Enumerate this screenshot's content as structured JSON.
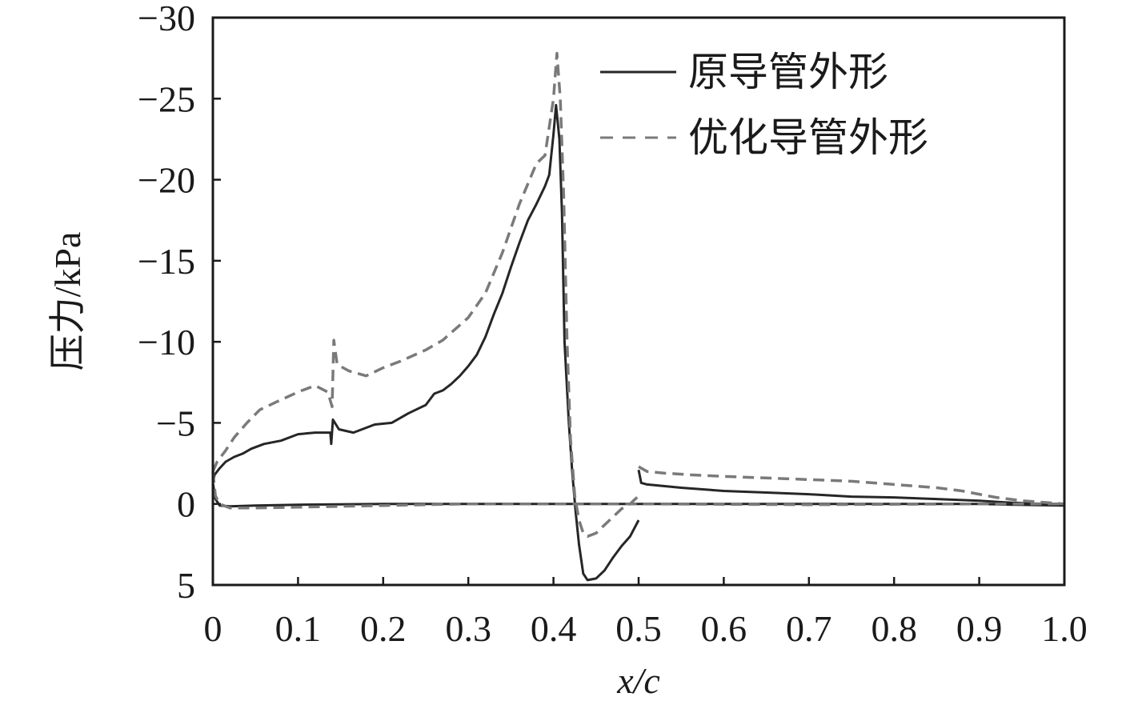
{
  "chart_data": {
    "type": "line",
    "xlabel": "x/c",
    "ylabel": "压力/kPa",
    "xlim": [
      0,
      1.0
    ],
    "ylim": [
      5,
      -30
    ],
    "y_inverted": true,
    "grid": false,
    "legend_position": "top-right",
    "x_ticks": [
      {
        "value": 0,
        "label": "0"
      },
      {
        "value": 0.1,
        "label": "0.1"
      },
      {
        "value": 0.2,
        "label": "0.2"
      },
      {
        "value": 0.3,
        "label": "0.3"
      },
      {
        "value": 0.4,
        "label": "0.4"
      },
      {
        "value": 0.5,
        "label": "0.5"
      },
      {
        "value": 0.6,
        "label": "0.6"
      },
      {
        "value": 0.7,
        "label": "0.7"
      },
      {
        "value": 0.8,
        "label": "0.8"
      },
      {
        "value": 0.9,
        "label": "0.9"
      },
      {
        "value": 1.0,
        "label": "1.0"
      }
    ],
    "y_ticks": [
      {
        "value": -30,
        "label": "−30"
      },
      {
        "value": -25,
        "label": "−25"
      },
      {
        "value": -20,
        "label": "−20"
      },
      {
        "value": -15,
        "label": "−15"
      },
      {
        "value": -10,
        "label": "−10"
      },
      {
        "value": -5,
        "label": "−5"
      },
      {
        "value": 0,
        "label": "0"
      },
      {
        "value": 5,
        "label": "5"
      }
    ],
    "series": [
      {
        "name": "原导管外形",
        "color": "#262626",
        "dash": "solid",
        "segments": [
          [
            [
              0.0,
              -1.3
            ],
            [
              0.002,
              -1.8
            ],
            [
              0.008,
              -2.2
            ],
            [
              0.015,
              -2.6
            ],
            [
              0.025,
              -2.9
            ],
            [
              0.035,
              -3.1
            ],
            [
              0.045,
              -3.4
            ],
            [
              0.06,
              -3.7
            ],
            [
              0.08,
              -3.9
            ],
            [
              0.1,
              -4.3
            ],
            [
              0.12,
              -4.4
            ],
            [
              0.138,
              -4.4
            ],
            [
              0.139,
              -3.7
            ],
            [
              0.141,
              -5.2
            ],
            [
              0.148,
              -4.6
            ],
            [
              0.165,
              -4.4
            ],
            [
              0.19,
              -4.9
            ],
            [
              0.21,
              -5.0
            ],
            [
              0.23,
              -5.6
            ],
            [
              0.25,
              -6.1
            ],
            [
              0.26,
              -6.8
            ],
            [
              0.27,
              -7.0
            ],
            [
              0.28,
              -7.4
            ],
            [
              0.29,
              -7.9
            ],
            [
              0.3,
              -8.5
            ],
            [
              0.31,
              -9.2
            ],
            [
              0.32,
              -10.3
            ],
            [
              0.33,
              -11.7
            ],
            [
              0.34,
              -13.0
            ],
            [
              0.35,
              -14.6
            ],
            [
              0.36,
              -16.1
            ],
            [
              0.37,
              -17.5
            ],
            [
              0.38,
              -18.5
            ],
            [
              0.39,
              -19.6
            ],
            [
              0.395,
              -20.3
            ],
            [
              0.4,
              -22.8
            ],
            [
              0.403,
              -24.6
            ],
            [
              0.407,
              -22.5
            ],
            [
              0.41,
              -18.0
            ],
            [
              0.413,
              -10.0
            ],
            [
              0.418,
              -5.0
            ],
            [
              0.422,
              -2.0
            ],
            [
              0.426,
              0.5
            ],
            [
              0.43,
              2.5
            ],
            [
              0.435,
              4.3
            ],
            [
              0.44,
              4.7
            ],
            [
              0.45,
              4.6
            ],
            [
              0.46,
              4.1
            ],
            [
              0.47,
              3.3
            ],
            [
              0.48,
              2.6
            ],
            [
              0.49,
              2.0
            ],
            [
              0.5,
              1.0
            ]
          ],
          [
            [
              0.5,
              -2.1
            ],
            [
              0.503,
              -1.3
            ],
            [
              0.51,
              -1.2
            ],
            [
              0.55,
              -1.0
            ],
            [
              0.6,
              -0.8
            ],
            [
              0.65,
              -0.7
            ],
            [
              0.7,
              -0.6
            ],
            [
              0.75,
              -0.45
            ],
            [
              0.8,
              -0.4
            ],
            [
              0.85,
              -0.3
            ],
            [
              0.9,
              -0.2
            ],
            [
              0.93,
              -0.1
            ],
            [
              0.96,
              -0.02
            ],
            [
              1.0,
              0.0
            ]
          ],
          [
            [
              0.0,
              -1.3
            ],
            [
              0.003,
              -0.3
            ],
            [
              0.008,
              0.1
            ],
            [
              0.02,
              0.15
            ],
            [
              0.05,
              0.1
            ],
            [
              0.1,
              0.05
            ],
            [
              0.2,
              0.0
            ],
            [
              0.3,
              0.0
            ],
            [
              0.4,
              0.0
            ],
            [
              0.5,
              0.0
            ],
            [
              0.7,
              0.0
            ],
            [
              0.9,
              0.0
            ],
            [
              0.94,
              0.05
            ],
            [
              1.0,
              0.1
            ]
          ]
        ]
      },
      {
        "name": "优化导管外形",
        "color": "#7a7a7a",
        "dash": "dashed",
        "segments": [
          [
            [
              0.0,
              -2.0
            ],
            [
              0.005,
              -2.6
            ],
            [
              0.015,
              -3.3
            ],
            [
              0.025,
              -4.1
            ],
            [
              0.04,
              -5.0
            ],
            [
              0.055,
              -5.8
            ],
            [
              0.075,
              -6.3
            ],
            [
              0.1,
              -6.9
            ],
            [
              0.12,
              -7.3
            ],
            [
              0.135,
              -6.9
            ],
            [
              0.14,
              -6.0
            ],
            [
              0.142,
              -10.1
            ],
            [
              0.146,
              -8.6
            ],
            [
              0.16,
              -8.2
            ],
            [
              0.18,
              -7.9
            ],
            [
              0.2,
              -8.4
            ],
            [
              0.22,
              -8.8
            ],
            [
              0.25,
              -9.5
            ],
            [
              0.27,
              -10.1
            ],
            [
              0.3,
              -11.5
            ],
            [
              0.32,
              -13.0
            ],
            [
              0.34,
              -15.5
            ],
            [
              0.36,
              -18.5
            ],
            [
              0.38,
              -21.0
            ],
            [
              0.39,
              -21.5
            ],
            [
              0.4,
              -25.0
            ],
            [
              0.404,
              -27.8
            ],
            [
              0.408,
              -25.0
            ],
            [
              0.412,
              -19.0
            ],
            [
              0.416,
              -10.0
            ],
            [
              0.42,
              -4.0
            ],
            [
              0.425,
              -0.5
            ],
            [
              0.43,
              1.0
            ],
            [
              0.435,
              1.8
            ],
            [
              0.44,
              2.0
            ],
            [
              0.45,
              1.8
            ],
            [
              0.46,
              1.3
            ],
            [
              0.47,
              0.8
            ],
            [
              0.48,
              0.3
            ],
            [
              0.49,
              0.0
            ],
            [
              0.5,
              -0.5
            ]
          ],
          [
            [
              0.5,
              -2.3
            ],
            [
              0.51,
              -2.0
            ],
            [
              0.53,
              -1.9
            ],
            [
              0.56,
              -1.8
            ],
            [
              0.6,
              -1.7
            ],
            [
              0.65,
              -1.6
            ],
            [
              0.7,
              -1.5
            ],
            [
              0.75,
              -1.4
            ],
            [
              0.8,
              -1.2
            ],
            [
              0.85,
              -1.0
            ],
            [
              0.88,
              -0.8
            ],
            [
              0.9,
              -0.6
            ],
            [
              0.92,
              -0.4
            ],
            [
              0.95,
              -0.2
            ],
            [
              1.0,
              0.0
            ]
          ],
          [
            [
              0.0,
              -2.0
            ],
            [
              0.003,
              -0.5
            ],
            [
              0.008,
              0.0
            ],
            [
              0.02,
              0.25
            ],
            [
              0.05,
              0.25
            ],
            [
              0.1,
              0.2
            ],
            [
              0.2,
              0.1
            ],
            [
              0.3,
              0.0
            ],
            [
              0.5,
              0.0
            ],
            [
              0.7,
              0.05
            ],
            [
              0.9,
              0.0
            ],
            [
              1.0,
              0.0
            ]
          ]
        ]
      }
    ]
  }
}
